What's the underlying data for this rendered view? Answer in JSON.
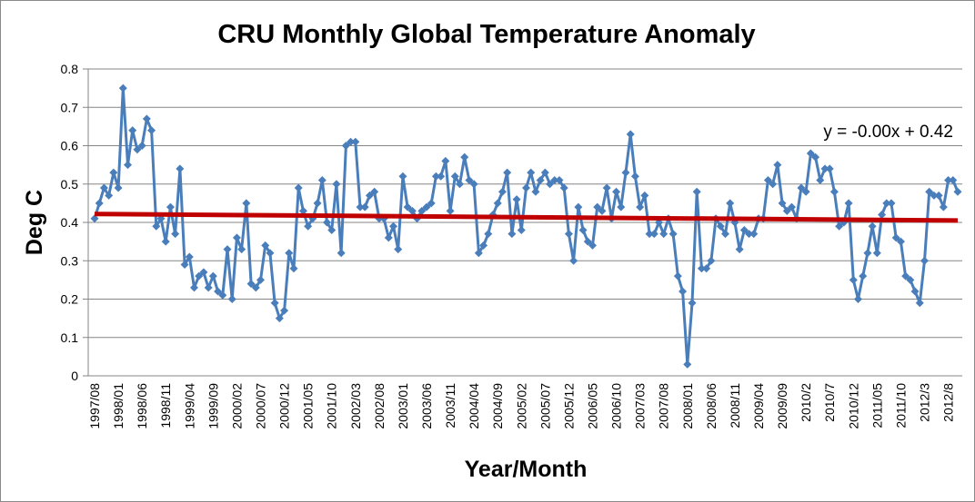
{
  "chart_data": {
    "type": "line",
    "title": "CRU Monthly Global Temperature Anomaly",
    "xlabel": "Year/Month",
    "ylabel": "Deg C",
    "ylim": [
      0,
      0.8
    ],
    "yticks": [
      "0",
      "0.1",
      "0.2",
      "0.3",
      "0.4",
      "0.5",
      "0.6",
      "0.7",
      "0.8"
    ],
    "grid": "horizontal",
    "x_start": "1997/08",
    "x_end": "2012/10",
    "xtick_labels": [
      "1997/08",
      "1998/01",
      "1998/06",
      "1998/11",
      "1999/04",
      "1999/09",
      "2000/02",
      "2000/07",
      "2000/12",
      "2001/05",
      "2001/10",
      "2002/03",
      "2002/08",
      "2003/01",
      "2003/06",
      "2003/11",
      "2004/04",
      "2004/09",
      "2005/02",
      "2005/07",
      "2005/12",
      "2006/05",
      "2006/10",
      "2007/03",
      "2007/08",
      "2008/01",
      "2008/06",
      "2008/11",
      "2009/04",
      "2009/09",
      "2010/2",
      "2010/7",
      "2010/12",
      "2011/05",
      "2011/10",
      "2012/3",
      "2012/8"
    ],
    "xtick_every": 5,
    "series": [
      {
        "name": "Monthly anomaly",
        "color": "#4a7ebb",
        "marker": "diamond",
        "values": [
          0.41,
          0.45,
          0.49,
          0.47,
          0.53,
          0.49,
          0.75,
          0.55,
          0.64,
          0.59,
          0.6,
          0.67,
          0.64,
          0.39,
          0.41,
          0.35,
          0.44,
          0.37,
          0.54,
          0.29,
          0.31,
          0.23,
          0.26,
          0.27,
          0.23,
          0.26,
          0.22,
          0.21,
          0.33,
          0.2,
          0.36,
          0.33,
          0.45,
          0.24,
          0.23,
          0.25,
          0.34,
          0.32,
          0.19,
          0.15,
          0.17,
          0.32,
          0.28,
          0.49,
          0.43,
          0.39,
          0.41,
          0.45,
          0.51,
          0.4,
          0.38,
          0.5,
          0.32,
          0.6,
          0.61,
          0.61,
          0.44,
          0.44,
          0.47,
          0.48,
          0.41,
          0.41,
          0.36,
          0.39,
          0.33,
          0.52,
          0.44,
          0.43,
          0.41,
          0.43,
          0.44,
          0.45,
          0.52,
          0.52,
          0.56,
          0.43,
          0.52,
          0.5,
          0.57,
          0.51,
          0.5,
          0.32,
          0.34,
          0.37,
          0.42,
          0.45,
          0.48,
          0.53,
          0.37,
          0.46,
          0.38,
          0.49,
          0.53,
          0.48,
          0.51,
          0.53,
          0.5,
          0.51,
          0.51,
          0.49,
          0.37,
          0.3,
          0.44,
          0.38,
          0.35,
          0.34,
          0.44,
          0.43,
          0.49,
          0.41,
          0.48,
          0.44,
          0.53,
          0.63,
          0.52,
          0.44,
          0.47,
          0.37,
          0.37,
          0.4,
          0.37,
          0.41,
          0.37,
          0.26,
          0.22,
          0.03,
          0.19,
          0.48,
          0.28,
          0.28,
          0.3,
          0.41,
          0.39,
          0.37,
          0.45,
          0.4,
          0.33,
          0.38,
          0.37,
          0.37,
          0.41,
          0.41,
          0.51,
          0.5,
          0.55,
          0.45,
          0.43,
          0.44,
          0.41,
          0.49,
          0.48,
          0.58,
          0.57,
          0.51,
          0.54,
          0.54,
          0.48,
          0.39,
          0.4,
          0.45,
          0.25,
          0.2,
          0.26,
          0.32,
          0.39,
          0.32,
          0.42,
          0.45,
          0.45,
          0.36,
          0.35,
          0.26,
          0.25,
          0.22,
          0.19,
          0.3,
          0.48,
          0.47,
          0.47,
          0.44,
          0.51,
          0.51,
          0.48
        ]
      },
      {
        "name": "Linear trend",
        "color": "#c00000",
        "type": "trendline",
        "start_value": 0.422,
        "end_value": 0.405
      }
    ],
    "annotations": [
      {
        "text": "y = -0.00x + 0.42",
        "position": "top-right"
      }
    ]
  }
}
